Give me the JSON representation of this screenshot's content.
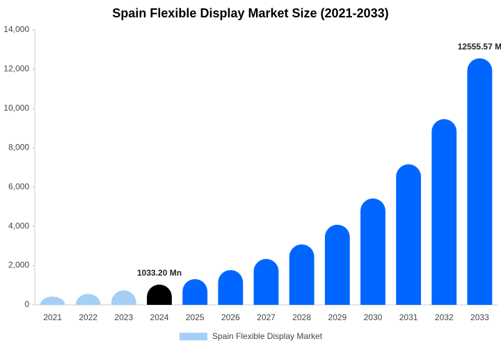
{
  "chart_data": {
    "type": "bar",
    "title": "Spain Flexible Display Market Size (2021-2033)",
    "categories": [
      "2021",
      "2022",
      "2023",
      "2024",
      "2025",
      "2026",
      "2027",
      "2028",
      "2029",
      "2030",
      "2031",
      "2032",
      "2033"
    ],
    "series": [
      {
        "name": "Spain Flexible Display Market",
        "color": "#a6cff7",
        "values": [
          420,
          560,
          740,
          1033.2,
          1310,
          1770,
          2340,
          3080,
          4080,
          5420,
          7160,
          9460,
          12555.57
        ],
        "colors": [
          "#a6cff7",
          "#a6cff7",
          "#a6cff7",
          "#000000",
          "#0066ff",
          "#0066ff",
          "#0066ff",
          "#0066ff",
          "#0066ff",
          "#0066ff",
          "#0066ff",
          "#0066ff",
          "#0066ff"
        ],
        "value_labels": [
          null,
          null,
          null,
          "1033.20 Mn",
          null,
          null,
          null,
          null,
          null,
          null,
          null,
          null,
          "12555.57 M"
        ]
      }
    ],
    "ylim": [
      0,
      14000
    ],
    "yticks": [
      0,
      {
        "value": 2000,
        "label": "2,000"
      },
      {
        "value": 4000,
        "label": "4,000"
      },
      {
        "value": 6000,
        "label": "6,000"
      },
      {
        "value": 8000,
        "label": "8,000"
      },
      {
        "value": 10000,
        "label": "10,000"
      },
      {
        "value": 12000,
        "label": "12,000"
      },
      {
        "value": 14000,
        "label": "14,000"
      }
    ],
    "grid": false,
    "legend": "bottom"
  }
}
